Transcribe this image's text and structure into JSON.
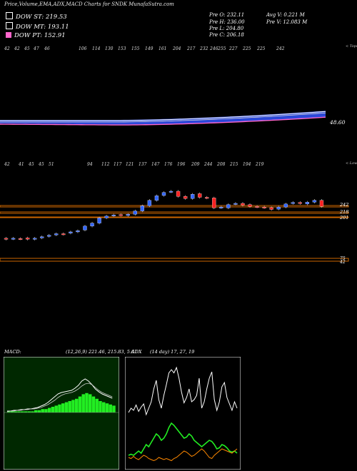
{
  "title": "Price,Volume,EMA,ADX,MACD Charts for SNDK MunafaSutra.com",
  "ema": [
    {
      "label": "DOW ST: 219.53",
      "color": "#ffffff"
    },
    {
      "label": "DOW MT: 193.11",
      "color": "#ffffff"
    },
    {
      "label": "DOW PT: 152.91",
      "color": "#ff66cc"
    }
  ],
  "stats": {
    "open": "Pre  O: 232.11",
    "high": "Pre  H: 236.00",
    "low": "Pre  L: 204.80",
    "close": "Pre  C: 206.18",
    "avg_vol": "Avg V: 0.221 M",
    "pre_vol": "Pre  V: 12.083 M"
  },
  "colors": {
    "up": "#3366ff",
    "down": "#ff2222",
    "sr": "#cc6600",
    "macd_bg": "#002800",
    "macd_hist": "#22ee22",
    "adx_line": "#ffffff",
    "adx_green": "#22ee22",
    "adx_orange": "#ff8800",
    "grid_gray": "#666666"
  },
  "upper_panel": {
    "top_labels": [
      "42",
      "42",
      "45",
      "47",
      "46",
      "106",
      "114",
      "130",
      "153",
      "155",
      "149",
      "161",
      "204",
      "217",
      "232",
      "246",
      "255",
      "227",
      "225",
      "225",
      "242"
    ],
    "top_label_tag": "< Tops",
    "value_label": "48.60",
    "bottom_labels": [
      "42",
      "41",
      "45",
      "45",
      "51",
      "94",
      "112",
      "117",
      "121",
      "137",
      "147",
      "176",
      "196",
      "209",
      "244",
      "208",
      "215",
      "194",
      "219"
    ],
    "bottom_label_tag": "< Lows"
  },
  "price_panel": {
    "sr_right_labels": [
      "242",
      "218",
      "201"
    ],
    "far_labels": [
      "75",
      "42"
    ]
  },
  "chart_data": [
    {
      "type": "candlestick",
      "title": "SNDK",
      "levels": [
        242,
        218,
        201
      ],
      "candles": [
        {
          "o": 45,
          "c": 42
        },
        {
          "o": 43,
          "c": 45
        },
        {
          "o": 44,
          "c": 43
        },
        {
          "o": 46,
          "c": 42
        },
        {
          "o": 42,
          "c": 45
        },
        {
          "o": 46,
          "c": 50
        },
        {
          "o": 51,
          "c": 55
        },
        {
          "o": 56,
          "c": 60
        },
        {
          "o": 60,
          "c": 58
        },
        {
          "o": 62,
          "c": 66
        },
        {
          "o": 66,
          "c": 70
        },
        {
          "o": 72,
          "c": 85
        },
        {
          "o": 85,
          "c": 95
        },
        {
          "o": 95,
          "c": 112
        },
        {
          "o": 112,
          "c": 118
        },
        {
          "o": 120,
          "c": 122
        },
        {
          "o": 123,
          "c": 121
        },
        {
          "o": 120,
          "c": 124
        },
        {
          "o": 124,
          "c": 135
        },
        {
          "o": 135,
          "c": 152
        },
        {
          "o": 152,
          "c": 170
        },
        {
          "o": 170,
          "c": 185
        },
        {
          "o": 186,
          "c": 196
        },
        {
          "o": 198,
          "c": 200
        },
        {
          "o": 200,
          "c": 183
        },
        {
          "o": 183,
          "c": 176
        },
        {
          "o": 176,
          "c": 190
        },
        {
          "o": 192,
          "c": 180
        },
        {
          "o": 180,
          "c": 178
        },
        {
          "o": 178,
          "c": 145
        },
        {
          "o": 146,
          "c": 148
        },
        {
          "o": 145,
          "c": 156
        },
        {
          "o": 158,
          "c": 160
        },
        {
          "o": 160,
          "c": 154
        },
        {
          "o": 156,
          "c": 150
        },
        {
          "o": 150,
          "c": 148
        },
        {
          "o": 148,
          "c": 146
        },
        {
          "o": 146,
          "c": 140
        },
        {
          "o": 141,
          "c": 148
        },
        {
          "o": 148,
          "c": 158
        },
        {
          "o": 160,
          "c": 163
        },
        {
          "o": 163,
          "c": 160
        },
        {
          "o": 158,
          "c": 164
        },
        {
          "o": 164,
          "c": 170
        },
        {
          "o": 170,
          "c": 150
        }
      ]
    },
    {
      "type": "line",
      "title": "MACD",
      "params": "(12,26,9) 221.46, 215.83, 5.61",
      "series": [
        {
          "values": [
            2,
            2,
            3,
            3,
            4,
            4,
            5,
            5,
            6,
            7,
            9,
            11,
            14,
            18,
            22,
            26,
            28,
            29,
            30,
            31,
            34,
            38,
            44,
            47,
            44,
            39,
            33,
            29,
            26,
            24,
            22,
            20
          ]
        },
        {
          "values": [
            1,
            2,
            2,
            3,
            3,
            4,
            4,
            5,
            5,
            6,
            7,
            9,
            11,
            14,
            17,
            21,
            24,
            26,
            27,
            28,
            30,
            33,
            37,
            40,
            41,
            39,
            35,
            31,
            28,
            26,
            24,
            22
          ]
        }
      ],
      "hist": [
        1,
        1,
        1,
        1,
        1,
        1,
        1,
        1,
        2,
        2,
        3,
        3,
        4,
        5,
        6,
        7,
        8,
        9,
        10,
        11,
        12,
        14,
        16,
        17,
        16,
        14,
        12,
        10,
        9,
        8,
        7,
        6
      ]
    },
    {
      "type": "line",
      "title": "ADX",
      "params": "(14 day) 17, 27, 19",
      "series": [
        {
          "values": [
            48,
            52,
            50,
            55,
            49,
            53,
            56,
            46,
            52,
            58,
            70,
            78,
            60,
            52,
            64,
            74,
            85,
            88,
            85,
            90,
            80,
            67,
            57,
            62,
            70,
            58,
            60,
            64,
            80,
            52,
            58,
            70,
            80,
            86,
            60,
            50,
            58,
            72,
            76,
            62,
            56,
            50,
            58,
            52
          ]
        },
        {
          "values": [
            8,
            9,
            8,
            10,
            12,
            10,
            14,
            18,
            16,
            20,
            24,
            28,
            26,
            22,
            24,
            28,
            34,
            38,
            36,
            33,
            30,
            27,
            24,
            25,
            28,
            26,
            22,
            20,
            18,
            16,
            18,
            20,
            22,
            21,
            18,
            14,
            15,
            18,
            17,
            15,
            12,
            11,
            12,
            10
          ]
        },
        {
          "values": [
            6,
            5,
            7,
            5,
            4,
            6,
            8,
            7,
            5,
            4,
            3,
            4,
            6,
            5,
            4,
            5,
            4,
            3,
            5,
            6,
            8,
            10,
            12,
            11,
            9,
            7,
            8,
            10,
            12,
            14,
            12,
            9,
            6,
            5,
            8,
            10,
            12,
            14,
            13,
            12,
            11,
            10,
            12,
            14
          ]
        }
      ]
    }
  ]
}
